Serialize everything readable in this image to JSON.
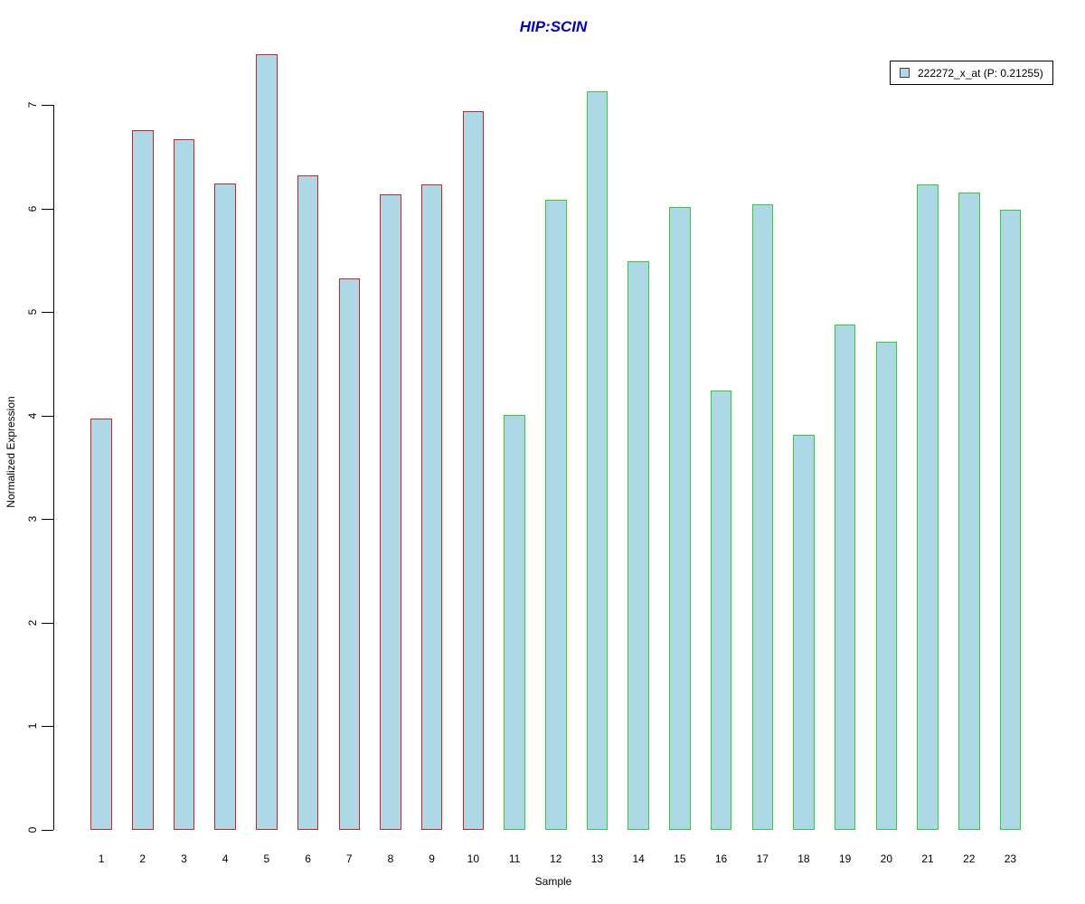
{
  "title": "HIP:SCIN",
  "title_color": "#0000CC",
  "legend": {
    "label": "222272_x_at (P: 0.21255)",
    "swatch_fill": "#ADD8E6",
    "position": "top-right"
  },
  "axes": {
    "y_label": "Normalized Expression",
    "x_label": "Sample"
  },
  "chart_data": {
    "type": "bar",
    "title": "HIP:SCIN",
    "xlabel": "Sample",
    "ylabel": "Normalized Expression",
    "ylim": [
      0,
      7.5
    ],
    "y_ticks": [
      0,
      1,
      2,
      3,
      4,
      5,
      6,
      7
    ],
    "grid": false,
    "legend_position": "top-right",
    "categories": [
      "1",
      "2",
      "3",
      "4",
      "5",
      "6",
      "7",
      "8",
      "9",
      "10",
      "11",
      "12",
      "13",
      "14",
      "15",
      "16",
      "17",
      "18",
      "19",
      "20",
      "21",
      "22",
      "23"
    ],
    "values": [
      3.97,
      6.76,
      6.67,
      6.24,
      7.49,
      6.32,
      5.32,
      6.14,
      6.23,
      6.94,
      4.01,
      6.08,
      7.13,
      5.49,
      6.01,
      4.24,
      6.04,
      3.81,
      4.88,
      4.71,
      6.23,
      6.15,
      5.99
    ],
    "bar_fill": "#ADD8E6",
    "groups": [
      {
        "name": "samples-1-10",
        "start": 1,
        "end": 10,
        "border_color": "#CC2222"
      },
      {
        "name": "samples-11-23",
        "start": 11,
        "end": 23,
        "border_color": "#33CC33"
      }
    ]
  }
}
